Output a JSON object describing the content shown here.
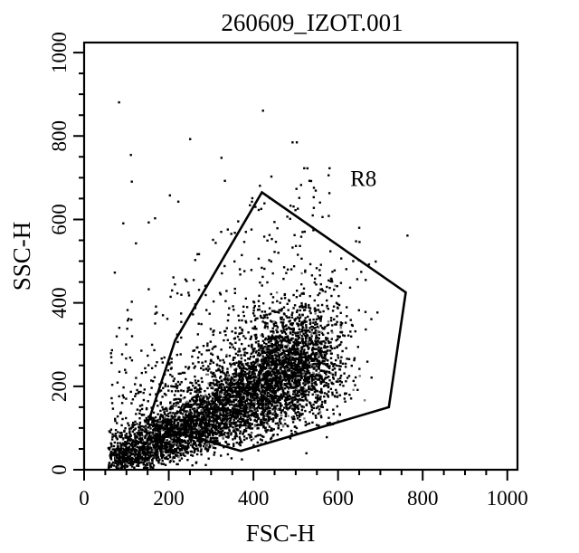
{
  "chart_data": {
    "type": "scatter",
    "title": "260609_IZOT.001",
    "xlabel": "FSC-H",
    "ylabel": "SSC-H",
    "xlim": [
      0,
      1024
    ],
    "ylim": [
      0,
      1024
    ],
    "x_ticks": [
      0,
      200,
      400,
      600,
      800,
      1000
    ],
    "y_ticks": [
      0,
      200,
      400,
      600,
      800,
      1000
    ],
    "minor_tick_step": 50,
    "grid": false,
    "point_color": "#000000",
    "background": "#ffffff",
    "population": {
      "cluster_axis": [
        [
          60,
          20
        ],
        [
          200,
          80
        ],
        [
          350,
          150
        ],
        [
          470,
          230
        ],
        [
          540,
          280
        ]
      ],
      "core_density": "very high",
      "scatter_extent_x": [
        55,
        650
      ],
      "scatter_extent_y": [
        0,
        880
      ]
    },
    "outliers": [
      [
        80,
        878
      ],
      [
        420,
        858
      ],
      [
        248,
        790
      ],
      [
        490,
        782
      ],
      [
        500,
        782
      ],
      [
        108,
        752
      ],
      [
        322,
        745
      ],
      [
        110,
        688
      ],
      [
        440,
        700
      ],
      [
        530,
        690
      ],
      [
        330,
        690
      ],
      [
        510,
        680
      ],
      [
        200,
        655
      ],
      [
        165,
        600
      ],
      [
        220,
        640
      ],
      [
        90,
        588
      ],
      [
        150,
        590
      ],
      [
        410,
        620
      ],
      [
        120,
        540
      ],
      [
        260,
        500
      ],
      [
        70,
        470
      ],
      [
        640,
        545
      ],
      [
        490,
        530
      ],
      [
        150,
        430
      ],
      [
        110,
        400
      ],
      [
        100,
        380
      ],
      [
        520,
        475
      ]
    ],
    "gates": [
      {
        "name": "R8",
        "label_at": [
          660,
          680
        ],
        "vertices": [
          [
            150,
            110
          ],
          [
            215,
            310
          ],
          [
            420,
            665
          ],
          [
            760,
            425
          ],
          [
            720,
            150
          ],
          [
            370,
            45
          ]
        ]
      }
    ]
  }
}
